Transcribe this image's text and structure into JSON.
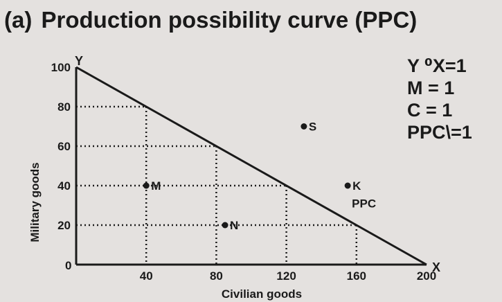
{
  "heading": {
    "prefix": "(a)",
    "title": "Production possibility curve (PPC)"
  },
  "notes": [
    "Y ⁰X=1",
    "M =   1",
    "C =   1",
    "PPC\\=1"
  ],
  "chart_data": {
    "type": "line",
    "xlabel": "Civilian goods",
    "ylabel": "Military goods",
    "x_axis_letter": "X",
    "y_axis_letter": "Y",
    "origin_label": "0",
    "xlim": [
      0,
      200
    ],
    "ylim": [
      0,
      100
    ],
    "x_ticks": [
      40,
      80,
      120,
      160,
      200
    ],
    "y_ticks": [
      20,
      40,
      60,
      80,
      100
    ],
    "grid": false,
    "series": [
      {
        "name": "PPC",
        "x": [
          0,
          200
        ],
        "y": [
          100,
          0
        ]
      }
    ],
    "guide_points": [
      {
        "x": 40,
        "y": 80
      },
      {
        "x": 80,
        "y": 60
      },
      {
        "x": 120,
        "y": 40
      },
      {
        "x": 160,
        "y": 20
      }
    ],
    "points": [
      {
        "label": "S",
        "x": 130,
        "y": 70
      },
      {
        "label": "K",
        "x": 155,
        "y": 40
      },
      {
        "label": "M",
        "x": 40,
        "y": 40
      },
      {
        "label": "N",
        "x": 85,
        "y": 20
      }
    ]
  }
}
